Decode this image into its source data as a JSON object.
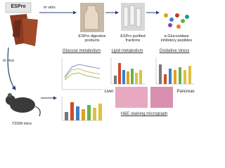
{
  "product": "ESPro",
  "in_vitro": "In vitro",
  "in_vivo": "In vivo",
  "steps": [
    "ESPro digestive products",
    "ESPro purified fractions",
    "α-Glucosidase inhibitory peptides"
  ],
  "model": "T2DM mice",
  "panels": [
    "Glucose metabolism",
    "Lipid metabolism",
    "Oxidative stress"
  ],
  "histology": {
    "liver": "Liver",
    "pancreas": "Pancreas",
    "caption": "H&E staining micrograph"
  }
}
